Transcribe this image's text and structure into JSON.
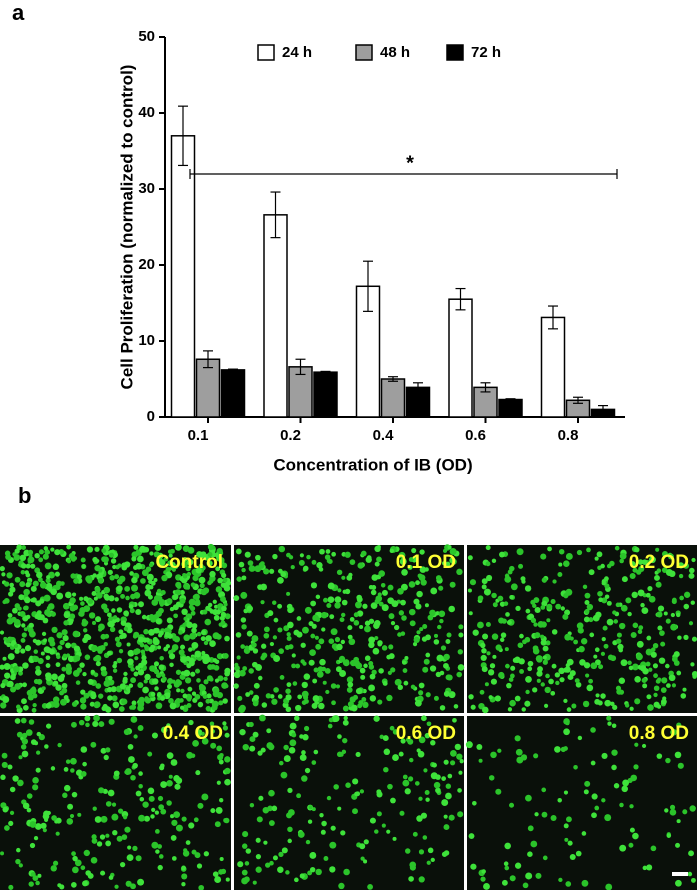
{
  "chart_data": {
    "type": "bar",
    "panel_label": "a",
    "ylabel": "Cell Proliferation (normalized to control)",
    "xlabel": "Concentration of IB (OD)",
    "categories": [
      "0.1",
      "0.2",
      "0.4",
      "0.6",
      "0.8"
    ],
    "series": [
      {
        "name": "24 h",
        "color": "#ffffff",
        "values": [
          37,
          26.6,
          17.2,
          15.5,
          13.1
        ],
        "errors": [
          3.9,
          3.0,
          3.3,
          1.4,
          1.5
        ]
      },
      {
        "name": "48 h",
        "color": "#9e9e9e",
        "values": [
          7.6,
          6.6,
          5.0,
          3.9,
          2.2
        ],
        "errors": [
          1.1,
          1.0,
          0.3,
          0.6,
          0.4
        ]
      },
      {
        "name": "72 h",
        "color": "#000000",
        "values": [
          6.2,
          5.9,
          3.9,
          2.3,
          1.0
        ],
        "errors": [
          0.1,
          0.1,
          0.6,
          0.1,
          0.5
        ]
      }
    ],
    "ylim": [
      0,
      50
    ],
    "yticks": [
      0,
      10,
      20,
      30,
      40,
      50
    ],
    "annotation": "*",
    "legend": "top"
  },
  "images": {
    "panel_label": "b",
    "labels": [
      "Control",
      "0.1 OD",
      "0.2 OD",
      "0.4 OD",
      "0.6 OD",
      "0.8 OD"
    ]
  }
}
